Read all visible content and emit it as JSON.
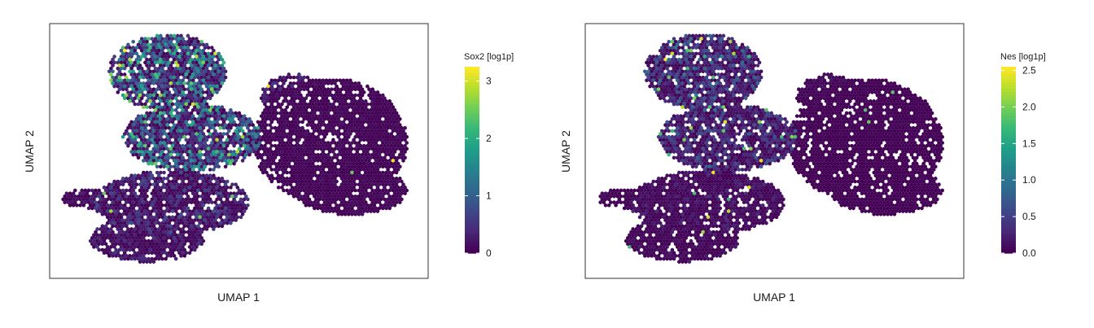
{
  "chart_data": [
    {
      "type": "heatmap",
      "subtype": "hexbin-umap",
      "xlabel": "UMAP 1",
      "ylabel": "UMAP 2",
      "legend": {
        "title": "Sox2 [log1p]",
        "placement": "right",
        "range": [
          0,
          3.25
        ],
        "ticks": [
          0,
          1,
          2,
          3
        ],
        "tick_labels": [
          "0",
          "1",
          "2",
          "3"
        ],
        "colormap": "viridis"
      },
      "axis_ticks_shown": false,
      "grid": false,
      "expression_pattern": "high in upper-left clusters (up to ~3), low elsewhere"
    },
    {
      "type": "heatmap",
      "subtype": "hexbin-umap",
      "xlabel": "UMAP 1",
      "ylabel": "UMAP 2",
      "legend": {
        "title": "Nes [log1p]",
        "placement": "right",
        "range": [
          0,
          2.55
        ],
        "ticks": [
          0,
          0.5,
          1,
          1.5,
          2,
          2.5
        ],
        "tick_labels": [
          "0.0",
          "0.5",
          "1.0",
          "1.5",
          "2.0",
          "2.5"
        ],
        "colormap": "viridis"
      },
      "axis_ticks_shown": false,
      "grid": false,
      "expression_pattern": "mostly low (~0-0.5), a few higher points in left clusters"
    }
  ],
  "colors": {
    "viridis": [
      "#440154",
      "#482878",
      "#3e4989",
      "#31688e",
      "#26828e",
      "#1f9e89",
      "#35b779",
      "#6ece58",
      "#b5de2b",
      "#fde725"
    ],
    "frame": "#333333"
  }
}
